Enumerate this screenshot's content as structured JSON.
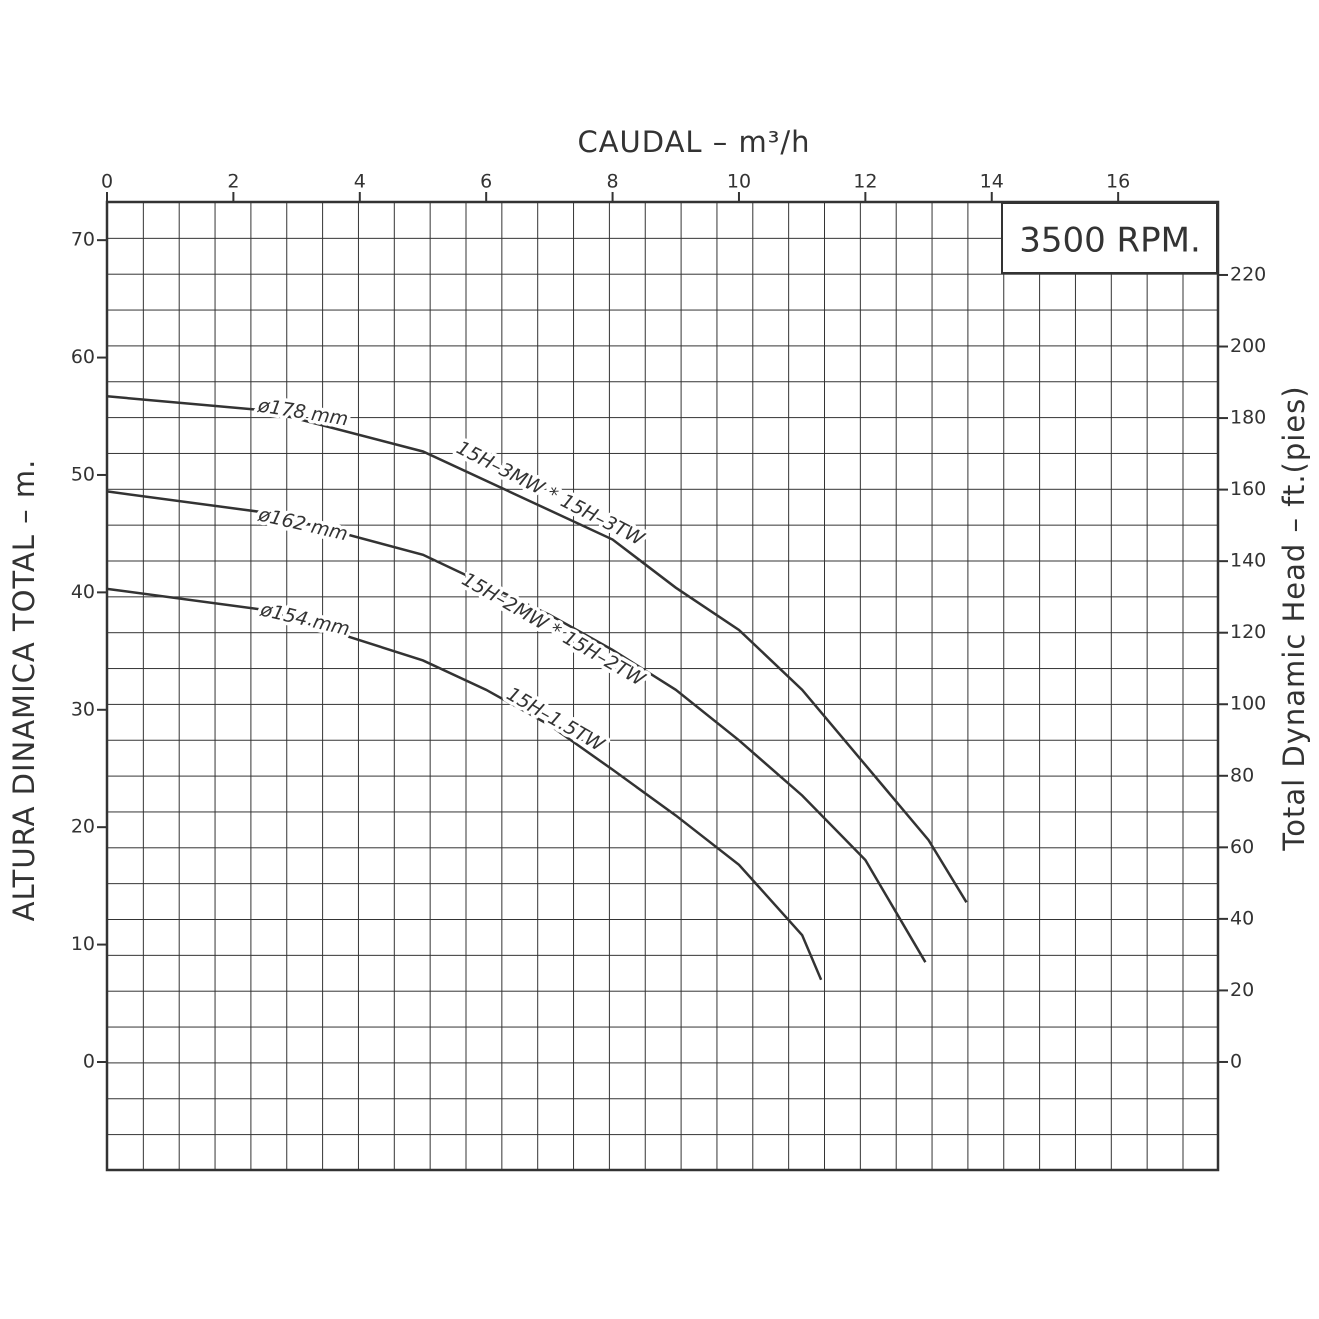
{
  "chart_data": {
    "type": "line",
    "xlabel": "CAUDAL  – m³/h",
    "ylabel": "ALTURA DINAMICA TOTAL – m.",
    "y2label": "Total Dynamic Head – ft.(pies)",
    "annotation": "3500 RPM.",
    "xlim": [
      0,
      17.58
    ],
    "xticks": [
      0,
      2,
      4,
      6,
      8,
      10,
      12,
      14,
      16
    ],
    "ylim": [
      -9.2,
      73.25
    ],
    "yticks": [
      0,
      10,
      20,
      30,
      40,
      50,
      60,
      70
    ],
    "y2lim": [
      -30.2,
      240.4
    ],
    "y2ticks": [
      0,
      20,
      40,
      60,
      80,
      100,
      120,
      140,
      160,
      180,
      200,
      220
    ],
    "grid": true,
    "series": [
      {
        "name": "ø178 mm",
        "label": "15H–3MW * 15H–3TW",
        "color": "#333333",
        "x": [
          0,
          2.5,
          5,
          8,
          9,
          10,
          11,
          12,
          13,
          13.6
        ],
        "values": [
          56.7,
          55.5,
          52,
          44.5,
          40.4,
          36.8,
          31.7,
          25.3,
          18.9,
          13.6
        ]
      },
      {
        "name": "ø162 mm",
        "label": "15H–2MW * 15H–2TW",
        "color": "#333333",
        "x": [
          0,
          2.5,
          5,
          7,
          8,
          9,
          10,
          11,
          12,
          12.95
        ],
        "values": [
          48.6,
          46.8,
          43.2,
          38.1,
          35.1,
          31.7,
          27.4,
          22.7,
          17.2,
          8.5
        ]
      },
      {
        "name": "ø154 mm",
        "label": "15H–1.5TW",
        "color": "#333333",
        "x": [
          0,
          2.5,
          5,
          6,
          7,
          8,
          9,
          10,
          11,
          11.3
        ],
        "values": [
          40.3,
          38.5,
          34.2,
          31.7,
          28.7,
          24.9,
          21.0,
          16.8,
          10.8,
          7.0
        ]
      }
    ]
  }
}
